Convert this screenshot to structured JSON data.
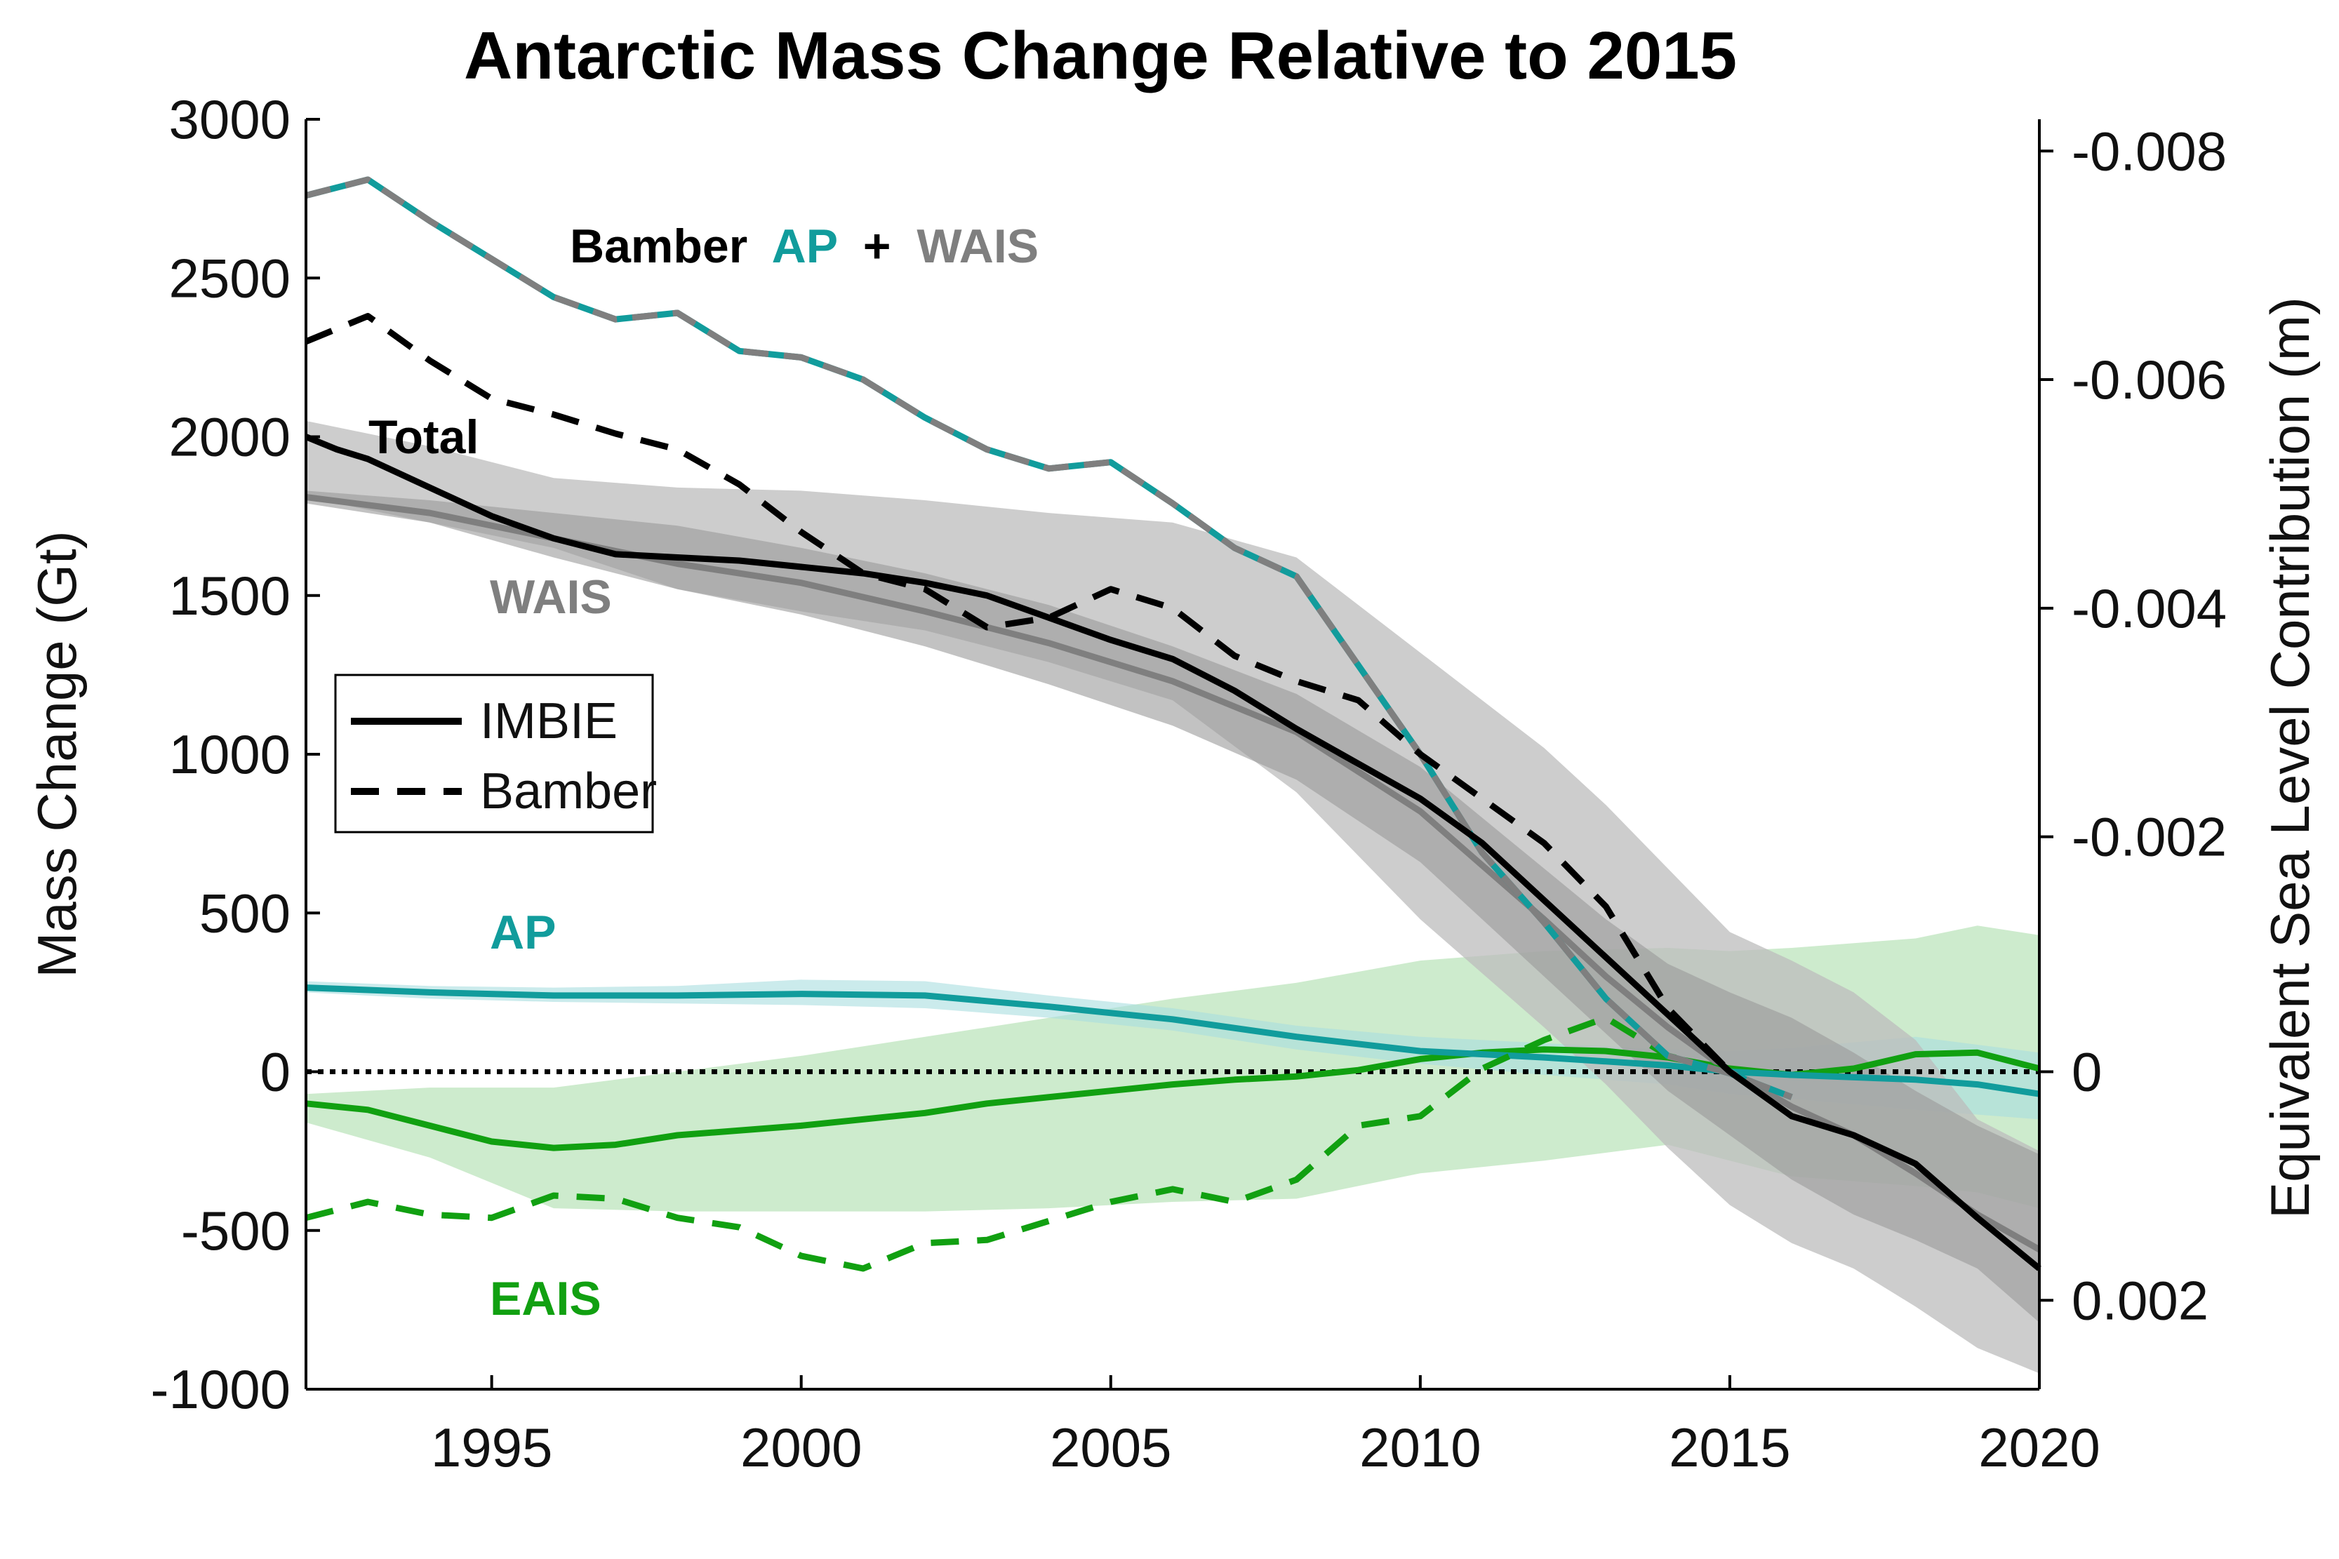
{
  "chart_data": {
    "type": "line",
    "title": "Antarctic Mass Change Relative to 2015",
    "ylabel": "Mass Change (Gt)",
    "y2label": "Equivalent Sea Level Contribution (m)",
    "xlim": [
      1992,
      2020
    ],
    "ylim": [
      -1000,
      3000
    ],
    "xticks": [
      "1995",
      "2000",
      "2005",
      "2010",
      "2015",
      "2020"
    ],
    "yticks": [
      "3000",
      "2500",
      "2000",
      "1500",
      "1000",
      "500",
      "0",
      "-500",
      "-1000"
    ],
    "y2ticks": [
      {
        "label": "-0.008",
        "gt": 2900
      },
      {
        "label": "-0.006",
        "gt": 2180
      },
      {
        "label": "-0.004",
        "gt": 1460
      },
      {
        "label": "-0.002",
        "gt": 740
      },
      {
        "label": "0",
        "gt": 0
      },
      {
        "label": "0.002",
        "gt": -720
      }
    ],
    "colors": {
      "total": "#000000",
      "wais": "#7f7f7f",
      "ap": "#119c9c",
      "eais": "#11a011",
      "eais_band": "#c4e8c4",
      "ap_band": "#a9dde0",
      "wais_band": "#9a9a9a",
      "total_band": "#bcbcbc"
    },
    "legend": {
      "position": "left-middle",
      "entries": [
        "IMBIE",
        "Bamber"
      ]
    },
    "annotations": {
      "total": "Total",
      "wais": "WAIS",
      "ap": "AP",
      "eais": "EAIS",
      "bamber_prefix": "Bamber",
      "bamber_ap": "AP",
      "bamber_plus": "+",
      "bamber_wais": "WAIS"
    },
    "series": [
      {
        "name": "Total",
        "key": "total_imbie",
        "style": "solid",
        "x": [
          1992,
          1992.5,
          1993,
          1994,
          1995,
          1996,
          1997,
          1998,
          1999,
          2000,
          2001,
          2002,
          2003,
          2004,
          2005,
          2006,
          2007,
          2008,
          2009,
          2010,
          2011,
          2012,
          2013,
          2014,
          2015,
          2016,
          2017,
          2018,
          2019,
          2020
        ],
        "y": [
          2000,
          1960,
          1930,
          1840,
          1750,
          1680,
          1630,
          1620,
          1610,
          1590,
          1570,
          1540,
          1500,
          1430,
          1360,
          1300,
          1200,
          1080,
          970,
          860,
          720,
          540,
          360,
          180,
          0,
          -140,
          -200,
          -290,
          -460,
          -620
        ]
      },
      {
        "name": "WAIS",
        "key": "wais_imbie",
        "style": "solid",
        "x": [
          1992,
          1994,
          1996,
          1998,
          2000,
          2002,
          2004,
          2006,
          2008,
          2010,
          2011,
          2012,
          2013,
          2014,
          2015,
          2016,
          2017,
          2018,
          2019,
          2020
        ],
        "y": [
          1810,
          1760,
          1680,
          1600,
          1540,
          1450,
          1350,
          1230,
          1070,
          820,
          650,
          480,
          300,
          140,
          0,
          -110,
          -200,
          -320,
          -450,
          -560
        ]
      },
      {
        "name": "AP",
        "key": "ap_imbie",
        "style": "solid",
        "x": [
          1992,
          1994,
          1996,
          1998,
          2000,
          2002,
          2004,
          2006,
          2008,
          2010,
          2012,
          2014,
          2015,
          2016,
          2018,
          2019,
          2020
        ],
        "y": [
          265,
          250,
          240,
          240,
          245,
          240,
          205,
          165,
          110,
          65,
          45,
          20,
          0,
          -10,
          -25,
          -40,
          -70
        ]
      },
      {
        "name": "EAIS",
        "key": "eais_imbie",
        "style": "solid",
        "x": [
          1992,
          1993,
          1994,
          1995,
          1996,
          1997,
          1998,
          2000,
          2002,
          2003,
          2004,
          2005,
          2006,
          2007,
          2008,
          2009,
          2010,
          2011,
          2012,
          2013,
          2014,
          2015,
          2016,
          2017,
          2018,
          2019,
          2020
        ],
        "y": [
          -100,
          -120,
          -170,
          -220,
          -240,
          -230,
          -200,
          -170,
          -130,
          -100,
          -80,
          -60,
          -40,
          -25,
          -15,
          5,
          40,
          60,
          70,
          65,
          45,
          10,
          -10,
          10,
          55,
          60,
          10
        ]
      },
      {
        "name": "Bamber Total",
        "key": "total_bamber",
        "style": "dashed",
        "x": [
          1992,
          1993,
          1994,
          1995,
          1996,
          1997,
          1998,
          1999,
          2000,
          2001,
          2002,
          2003,
          2004,
          2005,
          2006,
          2007,
          2008,
          2009,
          2010,
          2011,
          2012,
          2013,
          2014,
          2015
        ],
        "y": [
          2300,
          2380,
          2240,
          2120,
          2070,
          2010,
          1960,
          1850,
          1700,
          1570,
          1520,
          1400,
          1430,
          1520,
          1460,
          1310,
          1230,
          1170,
          1000,
          860,
          720,
          520,
          200,
          0
        ]
      },
      {
        "name": "Bamber WAIS+AP",
        "key": "waisap_bamber",
        "style": "dashdot",
        "x": [
          1992,
          1993,
          1994,
          1995,
          1996,
          1997,
          1998,
          1999,
          2000,
          2001,
          2002,
          2003,
          2004,
          2005,
          2006,
          2007,
          2008,
          2009,
          2010,
          2011,
          2012,
          2013,
          2014,
          2015,
          2016
        ],
        "y": [
          2760,
          2810,
          2680,
          2560,
          2440,
          2370,
          2390,
          2270,
          2250,
          2180,
          2060,
          1960,
          1900,
          1920,
          1790,
          1650,
          1560,
          1280,
          1000,
          690,
          470,
          230,
          50,
          -5,
          -80
        ]
      },
      {
        "name": "Bamber EAIS",
        "key": "eais_bamber",
        "style": "dashed",
        "x": [
          1992,
          1993,
          1994,
          1995,
          1996,
          1997,
          1998,
          1999,
          2000,
          2001,
          2002,
          2003,
          2004,
          2005,
          2006,
          2007,
          2008,
          2009,
          2010,
          2011,
          2012,
          2013,
          2014,
          2015
        ],
        "y": [
          -460,
          -410,
          -450,
          -460,
          -390,
          -400,
          -460,
          -490,
          -580,
          -620,
          -540,
          -530,
          -470,
          -410,
          -370,
          -410,
          -340,
          -170,
          -140,
          10,
          100,
          170,
          50,
          0
        ]
      }
    ],
    "bands": [
      {
        "key": "eais_band",
        "x": [
          1992,
          1994,
          1996,
          1998,
          2000,
          2002,
          2004,
          2006,
          2008,
          2010,
          2012,
          2014,
          2015,
          2016,
          2018,
          2019,
          2020
        ],
        "upper": [
          -70,
          -50,
          -50,
          0,
          50,
          110,
          170,
          230,
          280,
          350,
          380,
          390,
          380,
          390,
          420,
          460,
          430
        ],
        "lower": [
          -160,
          -270,
          -430,
          -440,
          -440,
          -440,
          -430,
          -410,
          -400,
          -320,
          -280,
          -230,
          -280,
          -330,
          -360,
          -380,
          -430
        ]
      },
      {
        "key": "ap_band",
        "x": [
          1992,
          1994,
          1996,
          1998,
          2000,
          2002,
          2004,
          2006,
          2008,
          2010,
          2012,
          2014,
          2015,
          2016,
          2018,
          2020
        ],
        "upper": [
          285,
          270,
          265,
          270,
          290,
          285,
          240,
          200,
          145,
          110,
          90,
          70,
          65,
          75,
          110,
          60
        ],
        "lower": [
          250,
          230,
          220,
          215,
          210,
          200,
          170,
          130,
          70,
          25,
          -10,
          -40,
          -70,
          -85,
          -120,
          -150
        ]
      },
      {
        "key": "total_band",
        "x": [
          1992,
          1994,
          1996,
          1998,
          2000,
          2002,
          2004,
          2006,
          2008,
          2010,
          2012,
          2013,
          2014,
          2015,
          2016,
          2017,
          2018,
          2019,
          2020
        ],
        "upper": [
          2050,
          1970,
          1870,
          1840,
          1830,
          1800,
          1760,
          1730,
          1620,
          1320,
          1020,
          840,
          640,
          440,
          350,
          250,
          100,
          -150,
          -250
        ],
        "lower": [
          1810,
          1730,
          1650,
          1520,
          1450,
          1390,
          1290,
          1170,
          880,
          480,
          140,
          -40,
          -240,
          -420,
          -540,
          -620,
          -740,
          -870,
          -950
        ]
      },
      {
        "key": "wais_band",
        "x": [
          1992,
          1994,
          1996,
          1998,
          2000,
          2002,
          2004,
          2006,
          2008,
          2010,
          2011,
          2012,
          2013,
          2014,
          2015,
          2016,
          2017,
          2018,
          2019,
          2020
        ],
        "upper": [
          1830,
          1800,
          1760,
          1720,
          1650,
          1570,
          1470,
          1340,
          1190,
          960,
          800,
          640,
          480,
          340,
          250,
          170,
          60,
          -60,
          -170,
          -260
        ],
        "lower": [
          1790,
          1730,
          1620,
          1520,
          1440,
          1340,
          1220,
          1090,
          920,
          660,
          480,
          300,
          120,
          -60,
          -200,
          -340,
          -450,
          -530,
          -620,
          -790
        ]
      }
    ]
  }
}
